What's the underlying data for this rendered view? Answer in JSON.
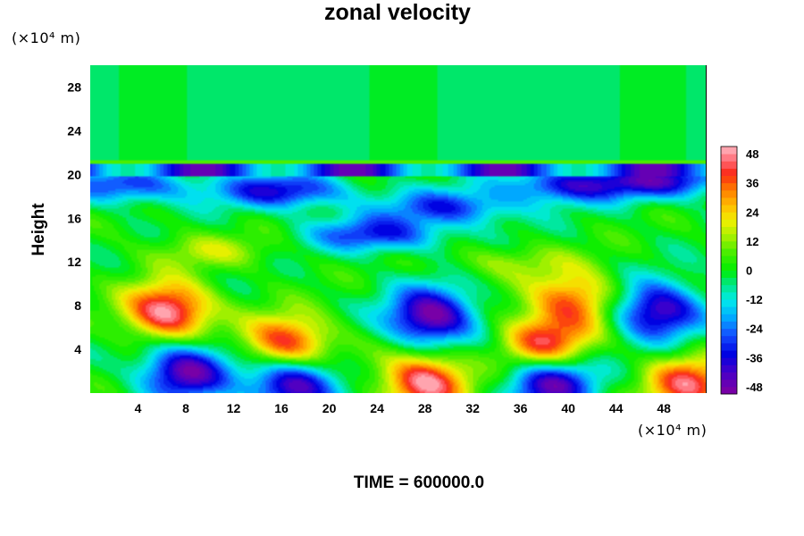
{
  "chart_data": {
    "type": "heatmap",
    "title": "zonal velocity",
    "ylabel": "Height",
    "xlabel": "",
    "y_unit": "(×10⁴ m)",
    "x_unit": "(×10⁴ m)",
    "xlim": [
      0,
      51.5
    ],
    "ylim": [
      0,
      30
    ],
    "x_ticks": [
      "4",
      "8",
      "12",
      "16",
      "20",
      "24",
      "28",
      "32",
      "36",
      "40",
      "44",
      "48"
    ],
    "y_ticks": [
      "4",
      "8",
      "12",
      "16",
      "20",
      "24",
      "28"
    ],
    "colorbar": {
      "range": [
        -51,
        51
      ],
      "ticks": [
        "48",
        "36",
        "24",
        "12",
        "0",
        "-12",
        "-24",
        "-36",
        "-48"
      ],
      "levels": 34
    },
    "features": [
      {
        "x": 6.5,
        "y": 7.5,
        "value": 52
      },
      {
        "x": 16.5,
        "y": 4.5,
        "value": 45
      },
      {
        "x": 28.5,
        "y": 7.0,
        "value": -52
      },
      {
        "x": 8.0,
        "y": 2.0,
        "value": -48
      },
      {
        "x": 17.0,
        "y": 0.8,
        "value": -50
      },
      {
        "x": 28.0,
        "y": 1.0,
        "value": 50
      },
      {
        "x": 38.0,
        "y": 4.5,
        "value": 44
      },
      {
        "x": 38.5,
        "y": 1.0,
        "value": -48
      },
      {
        "x": 40.5,
        "y": 8.5,
        "value": 36
      },
      {
        "x": 47.5,
        "y": 7.5,
        "value": -46
      },
      {
        "x": 50.0,
        "y": 0.8,
        "value": 42
      },
      {
        "x": 24.0,
        "y": 14.5,
        "value": -32
      },
      {
        "x": 30.0,
        "y": 17.0,
        "value": -30
      },
      {
        "x": 16.0,
        "y": 18.5,
        "value": -36
      },
      {
        "x": 40.0,
        "y": 19.0,
        "value": -34
      },
      {
        "x": 48.0,
        "y": 19.5,
        "value": -36
      },
      {
        "x": 3.0,
        "y": 19.0,
        "value": -30
      },
      {
        "x": 10.0,
        "y": 13.0,
        "value": 14
      },
      {
        "x": 35.0,
        "y": 12.0,
        "value": 12
      }
    ],
    "upper_region": {
      "y_from": 21,
      "value": -4
    },
    "grid": false,
    "legend": "colorbar-right"
  },
  "footer": {
    "label": "TIME = 600000.0"
  }
}
